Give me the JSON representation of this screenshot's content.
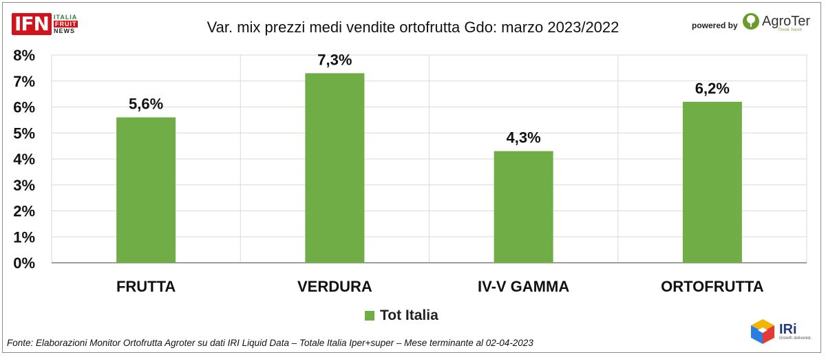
{
  "header": {
    "brand": "IFN",
    "brand_sub": [
      "ITALIA",
      "FRUIT",
      "NEWS"
    ],
    "title": "Var. mix prezzi medi vendite ortofrutta Gdo: marzo 2023/2022",
    "powered_by": "powered by",
    "sponsor": "AgroTer",
    "sponsor_tagline": "Think fresh"
  },
  "footer": {
    "source": "Fonte: Elaborazioni Monitor Ortofrutta Agroter su dati IRI Liquid Data – Totale Italia Iper+super – Mese terminante al 02-04-2023",
    "logo": "IRi",
    "logo_tagline": "Growth delivered."
  },
  "colors": {
    "bar": "#70ad47",
    "grid": "#d9d9d9",
    "brand_red": "#d4121b"
  },
  "chart_data": {
    "type": "bar",
    "categories": [
      "FRUTTA",
      "VERDURA",
      "IV-V GAMMA",
      "ORTOFRUTTA"
    ],
    "series": [
      {
        "name": "Tot Italia",
        "values": [
          5.6,
          7.3,
          4.3,
          6.2
        ],
        "labels": [
          "5,6%",
          "7,3%",
          "4,3%",
          "6,2%"
        ]
      }
    ],
    "yticks": [
      "0%",
      "1%",
      "2%",
      "3%",
      "4%",
      "5%",
      "6%",
      "7%",
      "8%"
    ],
    "ylim": [
      0,
      8
    ],
    "grid": true,
    "legend_position": "bottom"
  }
}
